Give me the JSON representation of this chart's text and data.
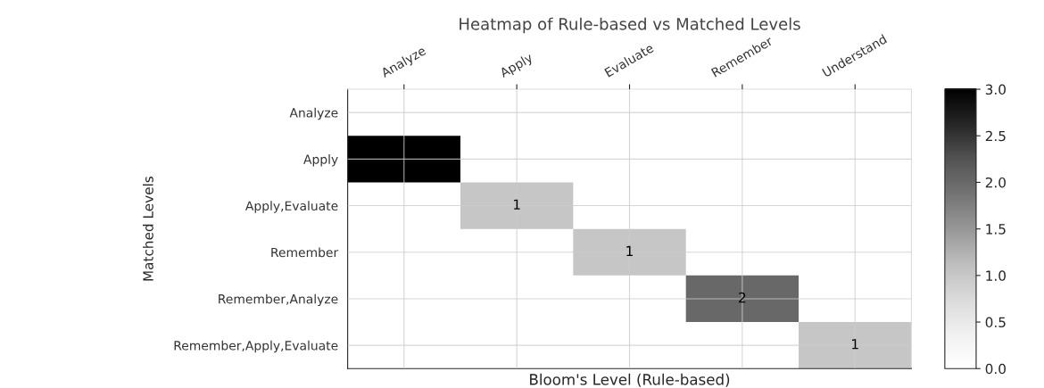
{
  "chart_data": {
    "type": "heatmap",
    "title": "Heatmap of Rule-based vs Matched Levels",
    "xlabel": "Bloom's Level (Rule-based)",
    "ylabel": "Matched Levels",
    "categories": [
      "Analyze",
      "Apply",
      "Evaluate",
      "Remember",
      "Understand"
    ],
    "y_categories": [
      "Analyze",
      "Apply",
      "Apply,Evaluate",
      "Remember",
      "Remember,Analyze",
      "Remember,Apply,Evaluate"
    ],
    "cells": [
      [
        null,
        null,
        null,
        null,
        null
      ],
      [
        3,
        null,
        null,
        null,
        null
      ],
      [
        null,
        1,
        null,
        null,
        null
      ],
      [
        null,
        null,
        1,
        null,
        null
      ],
      [
        null,
        null,
        null,
        2,
        null
      ],
      [
        null,
        null,
        null,
        null,
        1
      ]
    ],
    "cell_labels": [
      [
        null,
        null,
        null,
        null,
        null
      ],
      [
        null,
        null,
        null,
        null,
        null
      ],
      [
        null,
        "1",
        null,
        null,
        null
      ],
      [
        null,
        null,
        "1",
        null,
        null
      ],
      [
        null,
        null,
        null,
        "2",
        null
      ],
      [
        null,
        null,
        null,
        null,
        "1"
      ]
    ],
    "clim": [
      0,
      3
    ],
    "cticks": [
      {
        "value": 0,
        "label": "0.0"
      },
      0.5,
      {
        "value": 1,
        "label": "1.0"
      },
      1.5,
      {
        "value": 2,
        "label": "2.0"
      },
      2.5,
      {
        "value": 3,
        "label": "3.0"
      }
    ],
    "grid": true
  }
}
